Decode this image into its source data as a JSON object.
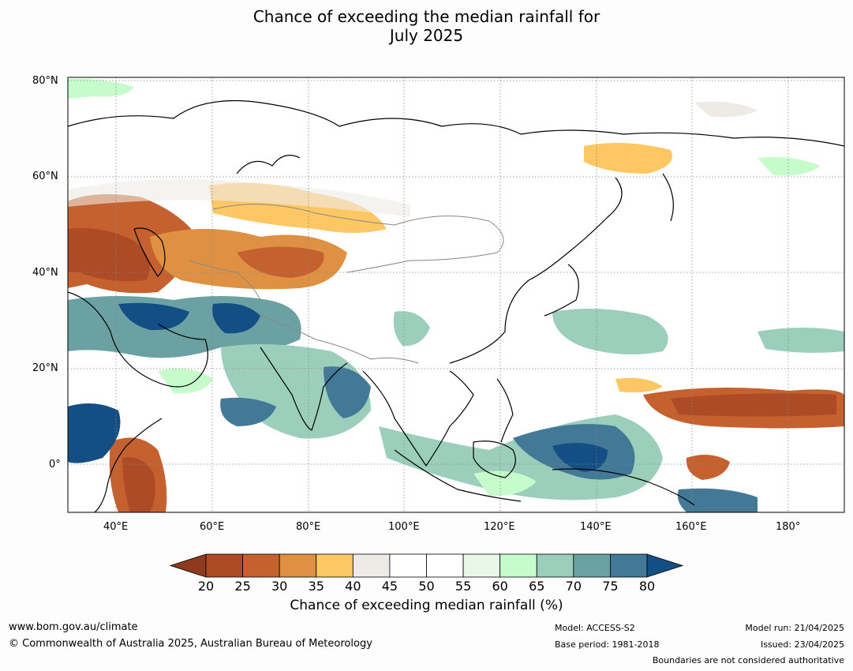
{
  "title": {
    "line1": "Chance of exceeding the median rainfall for",
    "line2": "July 2025"
  },
  "map": {
    "lat_labels": [
      "80°N",
      "60°N",
      "40°N",
      "20°N",
      "0°"
    ],
    "lon_labels": [
      "40°E",
      "60°E",
      "80°E",
      "100°E",
      "120°E",
      "140°E",
      "160°E",
      "180°"
    ]
  },
  "colorbar": {
    "ticks": [
      "20",
      "25",
      "30",
      "35",
      "40",
      "45",
      "50",
      "55",
      "60",
      "65",
      "70",
      "75",
      "80"
    ],
    "colors": [
      "#8f3a1e",
      "#ad4b26",
      "#c5612f",
      "#df9143",
      "#fdc864",
      "#eeebe6",
      "#ffffff",
      "#ffffff",
      "#e9f7e9",
      "#c6fccb",
      "#9bcfbc",
      "#6ba1a2",
      "#437897",
      "#134f84"
    ],
    "label": "Chance of exceeding median rainfall (%)"
  },
  "footer": {
    "website": "www.bom.gov.au/climate",
    "copyright": "© Commonwealth of Australia 2025, Australian Bureau of Meteorology",
    "model": "Model: ACCESS-S2",
    "base_period": "Base period: 1981-2018",
    "model_run": "Model run: 21/04/2025",
    "issued": "Issued: 23/04/2025",
    "disclaimer": "Boundaries are not considered authoritative"
  }
}
